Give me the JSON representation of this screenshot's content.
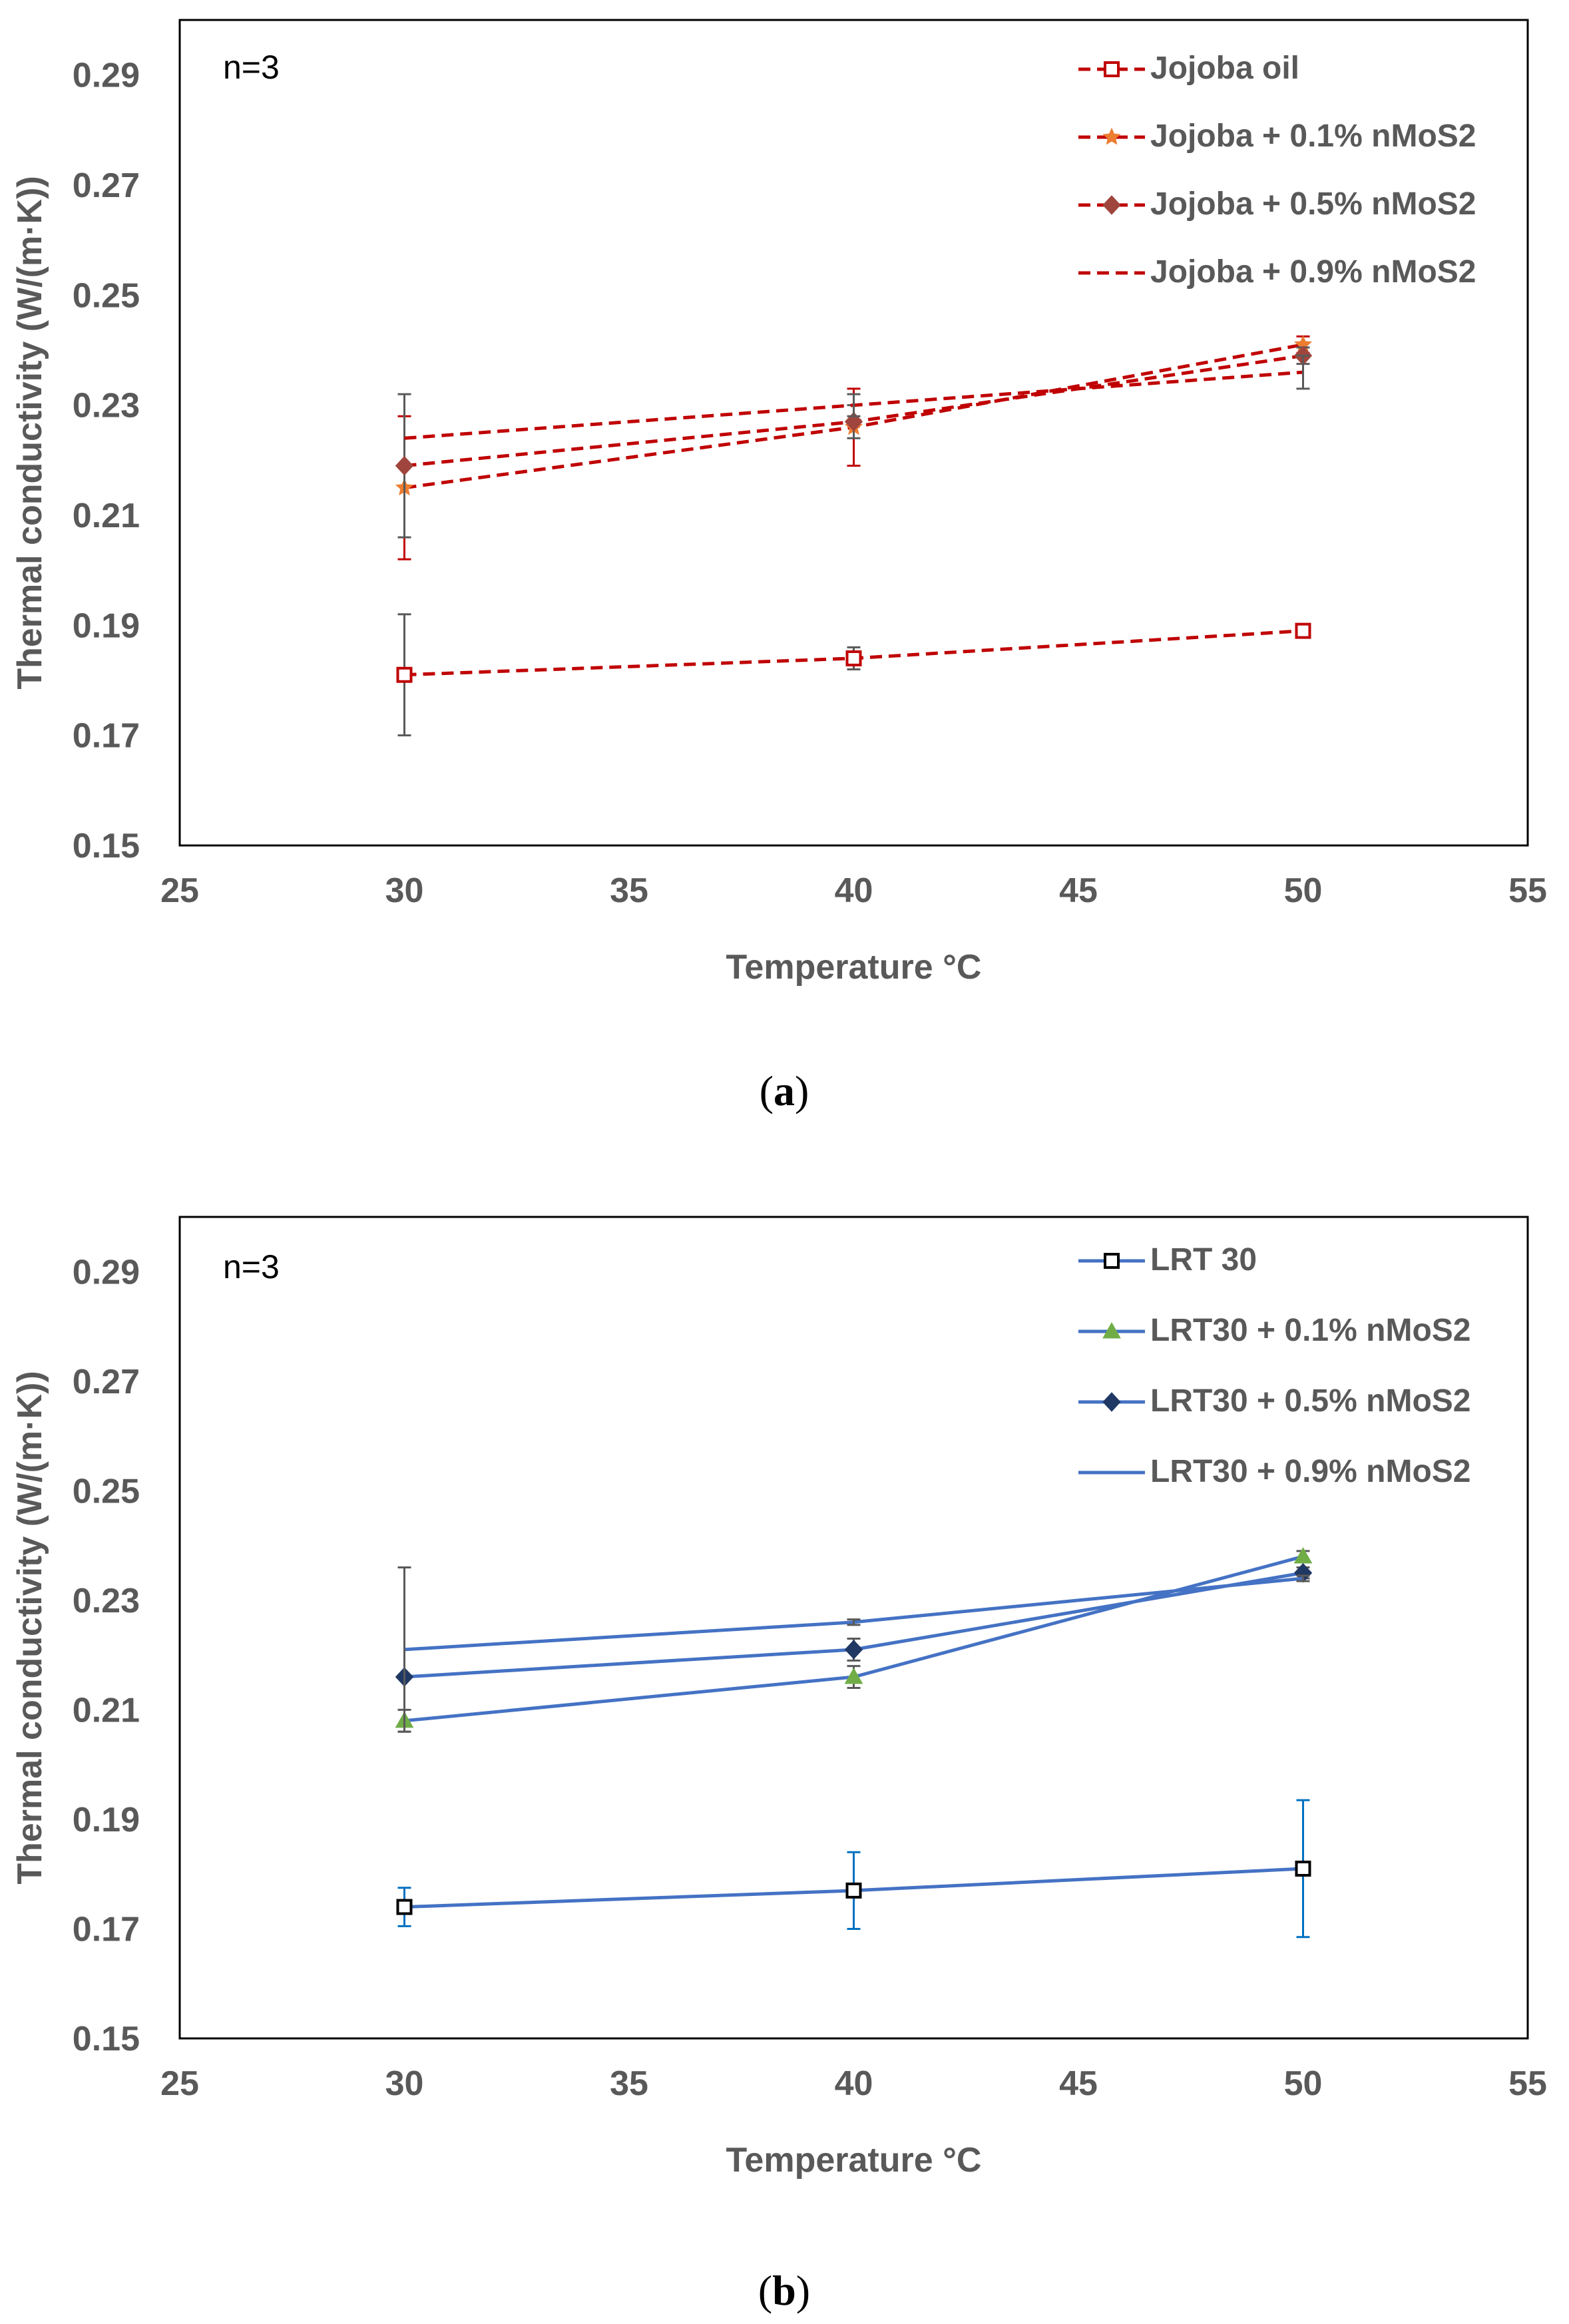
{
  "chart_data": [
    {
      "type": "line",
      "panel": "a",
      "caption_letter": "a",
      "annotation": "n=3",
      "xlabel": "Temperature °C",
      "ylabel": "Thermal conductivity (W/(m·K))",
      "xlim": [
        25,
        55
      ],
      "ylim": [
        0.15,
        0.3
      ],
      "xticks": [
        25,
        30,
        35,
        40,
        45,
        50,
        55
      ],
      "xtick_labels": [
        "25",
        "30",
        "35",
        "40",
        "45",
        "50",
        "55"
      ],
      "yticks": [
        0.15,
        0.17,
        0.19,
        0.21,
        0.23,
        0.25,
        0.27,
        0.29
      ],
      "ytick_labels": [
        "0.15",
        "0.17",
        "0.19",
        "0.21",
        "0.23",
        "0.25",
        "0.27",
        "0.29"
      ],
      "grid": false,
      "legend_position": "top-right",
      "line_style": "dashed",
      "x": [
        30,
        40,
        50
      ],
      "series": [
        {
          "name": "Jojoba oil",
          "marker": "square",
          "color": "#c00000",
          "marker_color": "#c00000",
          "err_color": "#595959",
          "values": [
            0.181,
            0.184,
            0.189
          ],
          "errors": [
            0.011,
            0.002,
            0.0005
          ]
        },
        {
          "name": "Jojoba + 0.1% nMoS2",
          "marker": "star",
          "color": "#c00000",
          "marker_color": "#ed7d31",
          "err_color": "#c00000",
          "values": [
            0.215,
            0.226,
            0.241
          ],
          "errors": [
            0.013,
            0.007,
            0.0015
          ]
        },
        {
          "name": "Jojoba + 0.5% nMoS2",
          "marker": "diamond",
          "color": "#c00000",
          "marker_color": "#a0453d",
          "err_color": "#595959",
          "values": [
            0.219,
            0.227,
            0.239
          ],
          "errors": [
            0.013,
            0.003,
            0.0015
          ]
        },
        {
          "name": "Jojoba + 0.9% nMoS2",
          "marker": "none",
          "color": "#c00000",
          "marker_color": "#c00000",
          "err_color": "#595959",
          "values": [
            0.224,
            0.23,
            0.236
          ],
          "errors": [
            0.0,
            0.002,
            0.003
          ]
        }
      ]
    },
    {
      "type": "line",
      "panel": "b",
      "caption_letter": "b",
      "annotation": "n=3",
      "xlabel": "Temperature °C",
      "ylabel": "Thermal conductivity (W/(m·K))",
      "xlim": [
        25,
        55
      ],
      "ylim": [
        0.15,
        0.3
      ],
      "xticks": [
        25,
        30,
        35,
        40,
        45,
        50,
        55
      ],
      "xtick_labels": [
        "25",
        "30",
        "35",
        "40",
        "45",
        "50",
        "55"
      ],
      "yticks": [
        0.15,
        0.17,
        0.19,
        0.21,
        0.23,
        0.25,
        0.27,
        0.29
      ],
      "ytick_labels": [
        "0.15",
        "0.17",
        "0.19",
        "0.21",
        "0.23",
        "0.25",
        "0.27",
        "0.29"
      ],
      "grid": false,
      "legend_position": "top-right",
      "line_style": "solid",
      "x": [
        30,
        40,
        50
      ],
      "series": [
        {
          "name": "LRT 30",
          "marker": "square",
          "color": "#4472c4",
          "marker_color": "#000000",
          "err_color": "#0070c0",
          "values": [
            0.174,
            0.177,
            0.181
          ],
          "errors": [
            0.0035,
            0.007,
            0.0125
          ]
        },
        {
          "name": "LRT30 + 0.1% nMoS2",
          "marker": "triangle",
          "color": "#4472c4",
          "marker_color": "#70ad47",
          "err_color": "#595959",
          "values": [
            0.208,
            0.216,
            0.238
          ],
          "errors": [
            0.002,
            0.002,
            0.001
          ]
        },
        {
          "name": "LRT30 + 0.5% nMoS2",
          "marker": "diamond",
          "color": "#4472c4",
          "marker_color": "#203864",
          "err_color": "#595959",
          "values": [
            0.216,
            0.221,
            0.235
          ],
          "errors": [
            0.0,
            0.002,
            0.001
          ]
        },
        {
          "name": "LRT30 + 0.9% nMoS2",
          "marker": "none",
          "color": "#4472c4",
          "marker_color": "#4472c4",
          "err_color": "#595959",
          "values": [
            0.221,
            0.226,
            0.234
          ],
          "errors": [
            0.015,
            0.0005,
            0.0005
          ]
        }
      ]
    }
  ]
}
